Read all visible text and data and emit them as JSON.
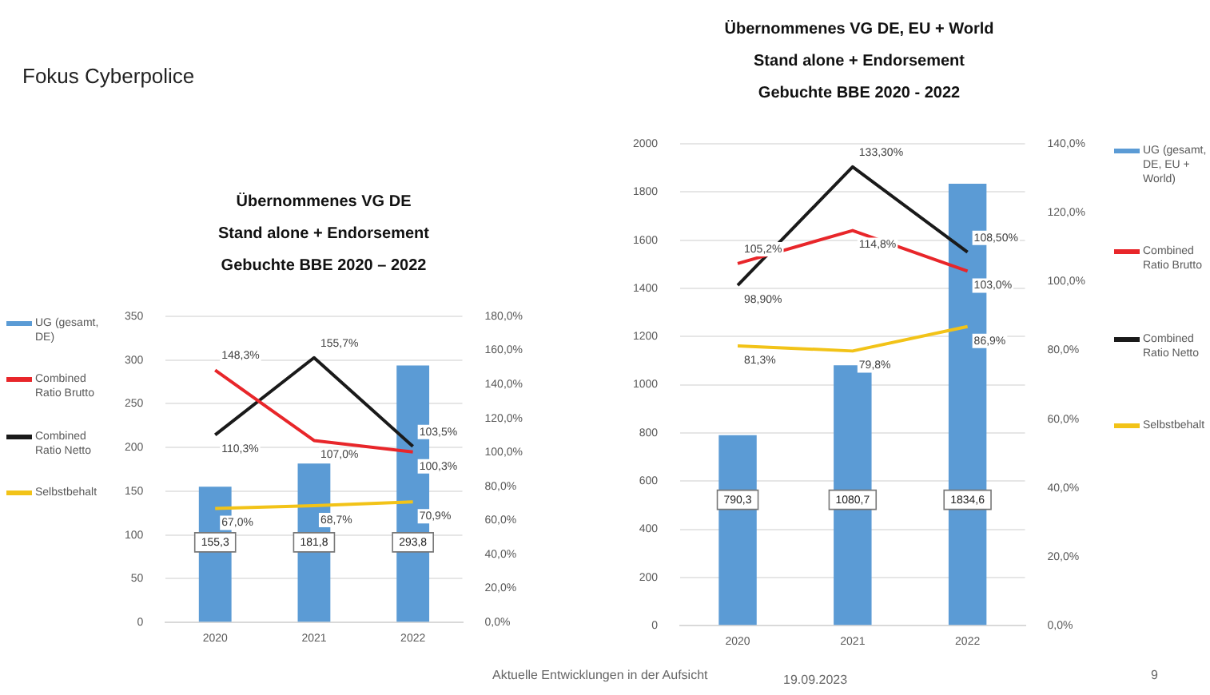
{
  "chart_data": [
    {
      "type": "bar",
      "title": "Übernommenes VG DE",
      "subtitle": "Stand alone + Endorsement\nGebuchte BBE 2020 – 2022",
      "categories": [
        "2020",
        "2021",
        "2022"
      ],
      "series": [
        {
          "name": "UG (gesamt, DE)",
          "color": "#5b9bd5",
          "values": [
            155.3,
            181.8,
            293.8
          ],
          "value_labels": [
            "155,3",
            "181,8",
            "293,8"
          ]
        },
        {
          "name": "Combined Ratio Brutto",
          "type": "line",
          "axis": "y2",
          "color": "#e8262a",
          "values": [
            148.3,
            107.0,
            100.3
          ],
          "value_labels": [
            "148,3%",
            "107,0%",
            "100,3%"
          ]
        },
        {
          "name": "Combined Ratio Netto",
          "type": "line",
          "axis": "y2",
          "color": "#1a1a1a",
          "values": [
            110.3,
            155.7,
            103.5
          ],
          "value_labels": [
            "110,3%",
            "155,7%",
            "103,5%"
          ]
        },
        {
          "name": "Selbstbehalt",
          "type": "line",
          "axis": "y2",
          "color": "#f2c318",
          "values": [
            67.0,
            68.7,
            70.9
          ],
          "value_labels": [
            "67,0%",
            "68,7%",
            "70,9%"
          ]
        }
      ],
      "ylim": [
        0,
        350
      ],
      "yticks": [
        0,
        50,
        100,
        150,
        200,
        250,
        300,
        350
      ],
      "y2lim": [
        0,
        180
      ],
      "y2ticks": [
        {
          "value": 0,
          "label": "0,0%"
        },
        {
          "value": 20,
          "label": "20,0%"
        },
        {
          "value": 40,
          "label": "40,0%"
        },
        {
          "value": 60,
          "label": "60,0%"
        },
        {
          "value": 80,
          "label": "80,0%"
        },
        {
          "value": 100,
          "label": "100,0%"
        },
        {
          "value": 120,
          "label": "120,0%"
        },
        {
          "value": 140,
          "label": "140,0%"
        },
        {
          "value": 160,
          "label": "160,0%"
        },
        {
          "value": 180,
          "label": "180,0%"
        }
      ],
      "grid": "y",
      "legend": "left",
      "annotations": [
        "Fokus Cyberpolice"
      ]
    },
    {
      "type": "bar",
      "title": "Übernommenes VG DE, EU + World",
      "subtitle": "Stand alone + Endorsement\nGebuchte BBE 2020 - 2022",
      "categories": [
        "2020",
        "2021",
        "2022"
      ],
      "series": [
        {
          "name": "UG (gesamt, DE, EU + World)",
          "color": "#5b9bd5",
          "values": [
            790.3,
            1080.7,
            1834.6
          ],
          "value_labels": [
            "790,3",
            "1080,7",
            "1834,6"
          ]
        },
        {
          "name": "Combined Ratio Brutto",
          "type": "line",
          "axis": "y2",
          "color": "#e8262a",
          "values": [
            105.2,
            114.8,
            103.0
          ],
          "value_labels": [
            "105,2%",
            "114,8%",
            "103,0%"
          ]
        },
        {
          "name": "Combined Ratio Netto",
          "type": "line",
          "axis": "y2",
          "color": "#1a1a1a",
          "values": [
            98.9,
            133.3,
            108.5
          ],
          "value_labels": [
            "98,90%",
            "133,30%",
            "108,50%"
          ]
        },
        {
          "name": "Selbstbehalt",
          "type": "line",
          "axis": "y2",
          "color": "#f2c318",
          "values": [
            81.3,
            79.8,
            86.9
          ],
          "value_labels": [
            "81,3%",
            "79,8%",
            "86,9%"
          ]
        }
      ],
      "ylim": [
        0,
        2000
      ],
      "yticks": [
        0,
        200,
        400,
        600,
        800,
        1000,
        1200,
        1400,
        1600,
        1800,
        2000
      ],
      "y2lim": [
        0,
        140
      ],
      "y2ticks": [
        {
          "value": 0,
          "label": "0,0%"
        },
        {
          "value": 20,
          "label": "20,0%"
        },
        {
          "value": 40,
          "label": "40,0%"
        },
        {
          "value": 60,
          "label": "60,0%"
        },
        {
          "value": 80,
          "label": "80,0%"
        },
        {
          "value": 100,
          "label": "100,0%"
        },
        {
          "value": 120,
          "label": "120,0%"
        },
        {
          "value": 140,
          "label": "140,0%"
        }
      ],
      "grid": "y",
      "legend": "right",
      "annotations": [
        "Aktuelle Entwicklungen in der Aufsicht",
        "19.09.2023",
        "9"
      ]
    }
  ]
}
